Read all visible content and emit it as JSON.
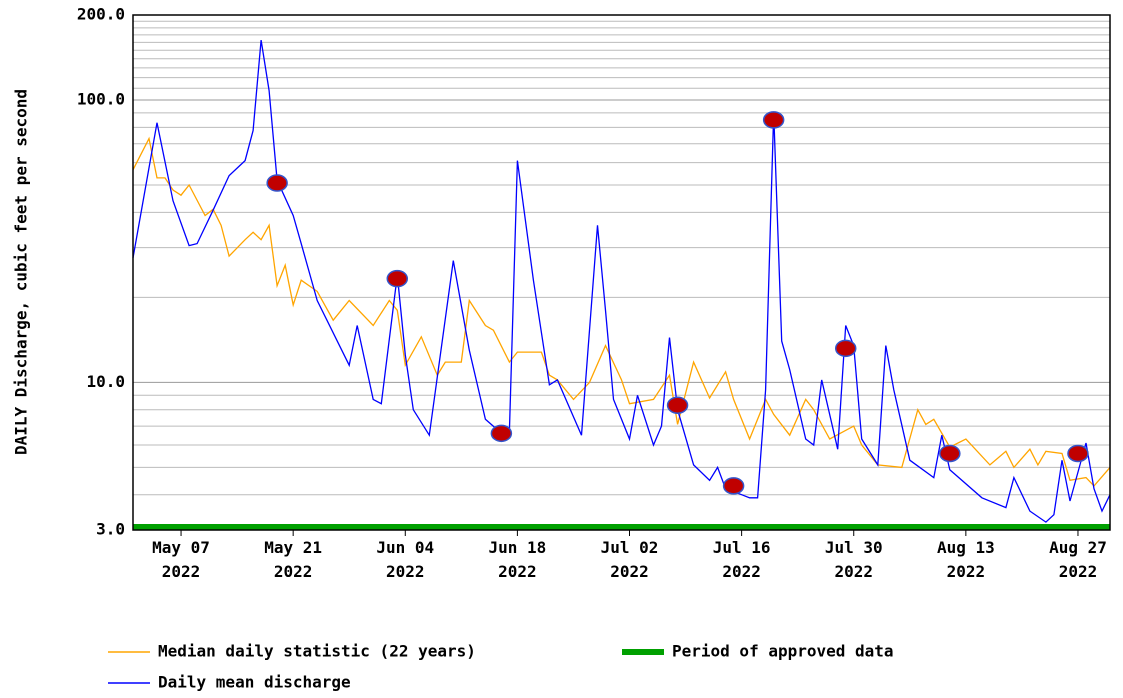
{
  "chart_data": {
    "type": "line",
    "y_label": "DAILY Discharge, cubic feet per second",
    "log_y": true,
    "grid": true,
    "ylim": [
      3,
      200
    ],
    "yticks": [
      {
        "value": 3,
        "label": "3.0"
      },
      {
        "value": 10,
        "label": "10.0"
      },
      {
        "value": 100,
        "label": "100.0"
      },
      {
        "value": 200,
        "label": "200.0"
      }
    ],
    "y_minor_grid": [
      4,
      5,
      6,
      7,
      8,
      9,
      20,
      30,
      40,
      50,
      60,
      70,
      80,
      90,
      110,
      120,
      130,
      140,
      150,
      160,
      170,
      180,
      190
    ],
    "xlim": [
      "2022-05-01",
      "2022-08-31"
    ],
    "xticks": [
      {
        "value": "2022-05-07",
        "label": "May 07 2022"
      },
      {
        "value": "2022-05-21",
        "label": "May 21 2022"
      },
      {
        "value": "2022-06-04",
        "label": "Jun 04 2022"
      },
      {
        "value": "2022-06-18",
        "label": "Jun 18 2022"
      },
      {
        "value": "2022-07-02",
        "label": "Jul 02 2022"
      },
      {
        "value": "2022-07-16",
        "label": "Jul 16 2022"
      },
      {
        "value": "2022-07-30",
        "label": "Jul 30 2022"
      },
      {
        "value": "2022-08-13",
        "label": "Aug 13 2022"
      },
      {
        "value": "2022-08-27",
        "label": "Aug 27 2022"
      }
    ],
    "series": [
      {
        "name": "Median daily statistic (22 years)",
        "color": "#ffa500",
        "x": [
          "2022-05-01",
          "2022-05-03",
          "2022-05-04",
          "2022-05-05",
          "2022-05-06",
          "2022-05-07",
          "2022-05-08",
          "2022-05-10",
          "2022-05-11",
          "2022-05-12",
          "2022-05-13",
          "2022-05-15",
          "2022-05-16",
          "2022-05-17",
          "2022-05-18",
          "2022-05-19",
          "2022-05-20",
          "2022-05-21",
          "2022-05-22",
          "2022-05-24",
          "2022-05-26",
          "2022-05-28",
          "2022-05-31",
          "2022-06-02",
          "2022-06-03",
          "2022-06-04",
          "2022-06-06",
          "2022-06-08",
          "2022-06-09",
          "2022-06-11",
          "2022-06-12",
          "2022-06-14",
          "2022-06-15",
          "2022-06-17",
          "2022-06-18",
          "2022-06-21",
          "2022-06-22",
          "2022-06-23",
          "2022-06-25",
          "2022-06-27",
          "2022-06-29",
          "2022-07-01",
          "2022-07-02",
          "2022-07-05",
          "2022-07-07",
          "2022-07-08",
          "2022-07-10",
          "2022-07-12",
          "2022-07-14",
          "2022-07-15",
          "2022-07-17",
          "2022-07-19",
          "2022-07-20",
          "2022-07-22",
          "2022-07-24",
          "2022-07-25",
          "2022-07-27",
          "2022-07-30",
          "2022-07-31",
          "2022-08-02",
          "2022-08-05",
          "2022-08-07",
          "2022-08-08",
          "2022-08-09",
          "2022-08-11",
          "2022-08-13",
          "2022-08-16",
          "2022-08-18",
          "2022-08-19",
          "2022-08-21",
          "2022-08-22",
          "2022-08-23",
          "2022-08-25",
          "2022-08-26",
          "2022-08-28",
          "2022-08-29",
          "2022-08-31"
        ],
        "values": [
          56.6,
          73,
          53,
          53,
          48,
          46,
          50,
          39,
          41,
          36,
          28,
          32,
          34,
          32,
          36,
          22,
          26,
          18.8,
          23,
          21,
          16.6,
          19.5,
          15.9,
          19.5,
          18,
          11.5,
          14.5,
          10.6,
          11.8,
          11.8,
          19.5,
          15.9,
          15.3,
          11.8,
          12.8,
          12.8,
          10.6,
          10.2,
          8.7,
          10,
          13.5,
          10.2,
          8.4,
          8.7,
          10.6,
          7.1,
          11.8,
          8.8,
          10.9,
          8.7,
          6.3,
          8.7,
          7.7,
          6.5,
          8.7,
          8,
          6.3,
          7,
          6.0,
          5.1,
          5.0,
          8,
          7.1,
          7.4,
          5.9,
          6.3,
          5.1,
          5.7,
          5.0,
          5.8,
          5.1,
          5.7,
          5.6,
          4.5,
          4.6,
          4.3,
          5.0
        ]
      },
      {
        "name": "Period of approved data",
        "color": "#00a000",
        "kind": "period",
        "x": [
          "2022-05-01",
          "2022-08-31"
        ]
      },
      {
        "name": "Daily mean discharge",
        "color": "#0000ff",
        "x": [
          "2022-05-01",
          "2022-05-04",
          "2022-05-06",
          "2022-05-08",
          "2022-05-09",
          "2022-05-11",
          "2022-05-13",
          "2022-05-15",
          "2022-05-16",
          "2022-05-17",
          "2022-05-18",
          "2022-05-19",
          "2022-05-21",
          "2022-05-22",
          "2022-05-24",
          "2022-05-28",
          "2022-05-29",
          "2022-05-31",
          "2022-06-01",
          "2022-06-03",
          "2022-06-04",
          "2022-06-05",
          "2022-06-07",
          "2022-06-10",
          "2022-06-12",
          "2022-06-14",
          "2022-06-16",
          "2022-06-17",
          "2022-06-18",
          "2022-06-20",
          "2022-06-22",
          "2022-06-23",
          "2022-06-26",
          "2022-06-28",
          "2022-06-29",
          "2022-06-30",
          "2022-07-02",
          "2022-07-03",
          "2022-07-05",
          "2022-07-06",
          "2022-07-07",
          "2022-07-08",
          "2022-07-10",
          "2022-07-12",
          "2022-07-13",
          "2022-07-14",
          "2022-07-16",
          "2022-07-17",
          "2022-07-18",
          "2022-07-19",
          "2022-07-20",
          "2022-07-21",
          "2022-07-22",
          "2022-07-24",
          "2022-07-25",
          "2022-07-26",
          "2022-07-28",
          "2022-07-29",
          "2022-07-30",
          "2022-07-31",
          "2022-08-02",
          "2022-08-03",
          "2022-08-04",
          "2022-08-06",
          "2022-08-09",
          "2022-08-10",
          "2022-08-11",
          "2022-08-15",
          "2022-08-18",
          "2022-08-19",
          "2022-08-21",
          "2022-08-23",
          "2022-08-24",
          "2022-08-25",
          "2022-08-26",
          "2022-08-28",
          "2022-08-29",
          "2022-08-30",
          "2022-08-31"
        ],
        "values": [
          27.6,
          83,
          44,
          30.5,
          31,
          40.7,
          54,
          61,
          78,
          163,
          108,
          52,
          39,
          31,
          19.5,
          11.5,
          15.9,
          8.7,
          8.4,
          24,
          12.5,
          8,
          6.5,
          27,
          13,
          7.4,
          6.6,
          6.7,
          61,
          23,
          9.8,
          10.2,
          6.5,
          36,
          18,
          8.7,
          6.3,
          9,
          6.0,
          7,
          14.4,
          8,
          5.1,
          4.5,
          5,
          4.2,
          4.0,
          3.9,
          3.9,
          9.4,
          90,
          14,
          11.1,
          6.3,
          6.0,
          10.2,
          5.8,
          15.9,
          13.5,
          6.3,
          5.1,
          13.5,
          9.4,
          5.3,
          4.6,
          6.5,
          4.9,
          3.9,
          3.6,
          4.6,
          3.5,
          3.2,
          3.4,
          5.3,
          3.8,
          6.1,
          4.2,
          3.5,
          4.0
        ]
      }
    ],
    "markers": {
      "color": "#c00000",
      "x": [
        "2022-05-19",
        "2022-06-03",
        "2022-06-16",
        "2022-07-08",
        "2022-07-15",
        "2022-07-20",
        "2022-07-29",
        "2022-08-11",
        "2022-08-27"
      ],
      "values": [
        50.8,
        23.3,
        6.6,
        8.3,
        4.3,
        85,
        13.2,
        5.6,
        5.6
      ]
    }
  }
}
